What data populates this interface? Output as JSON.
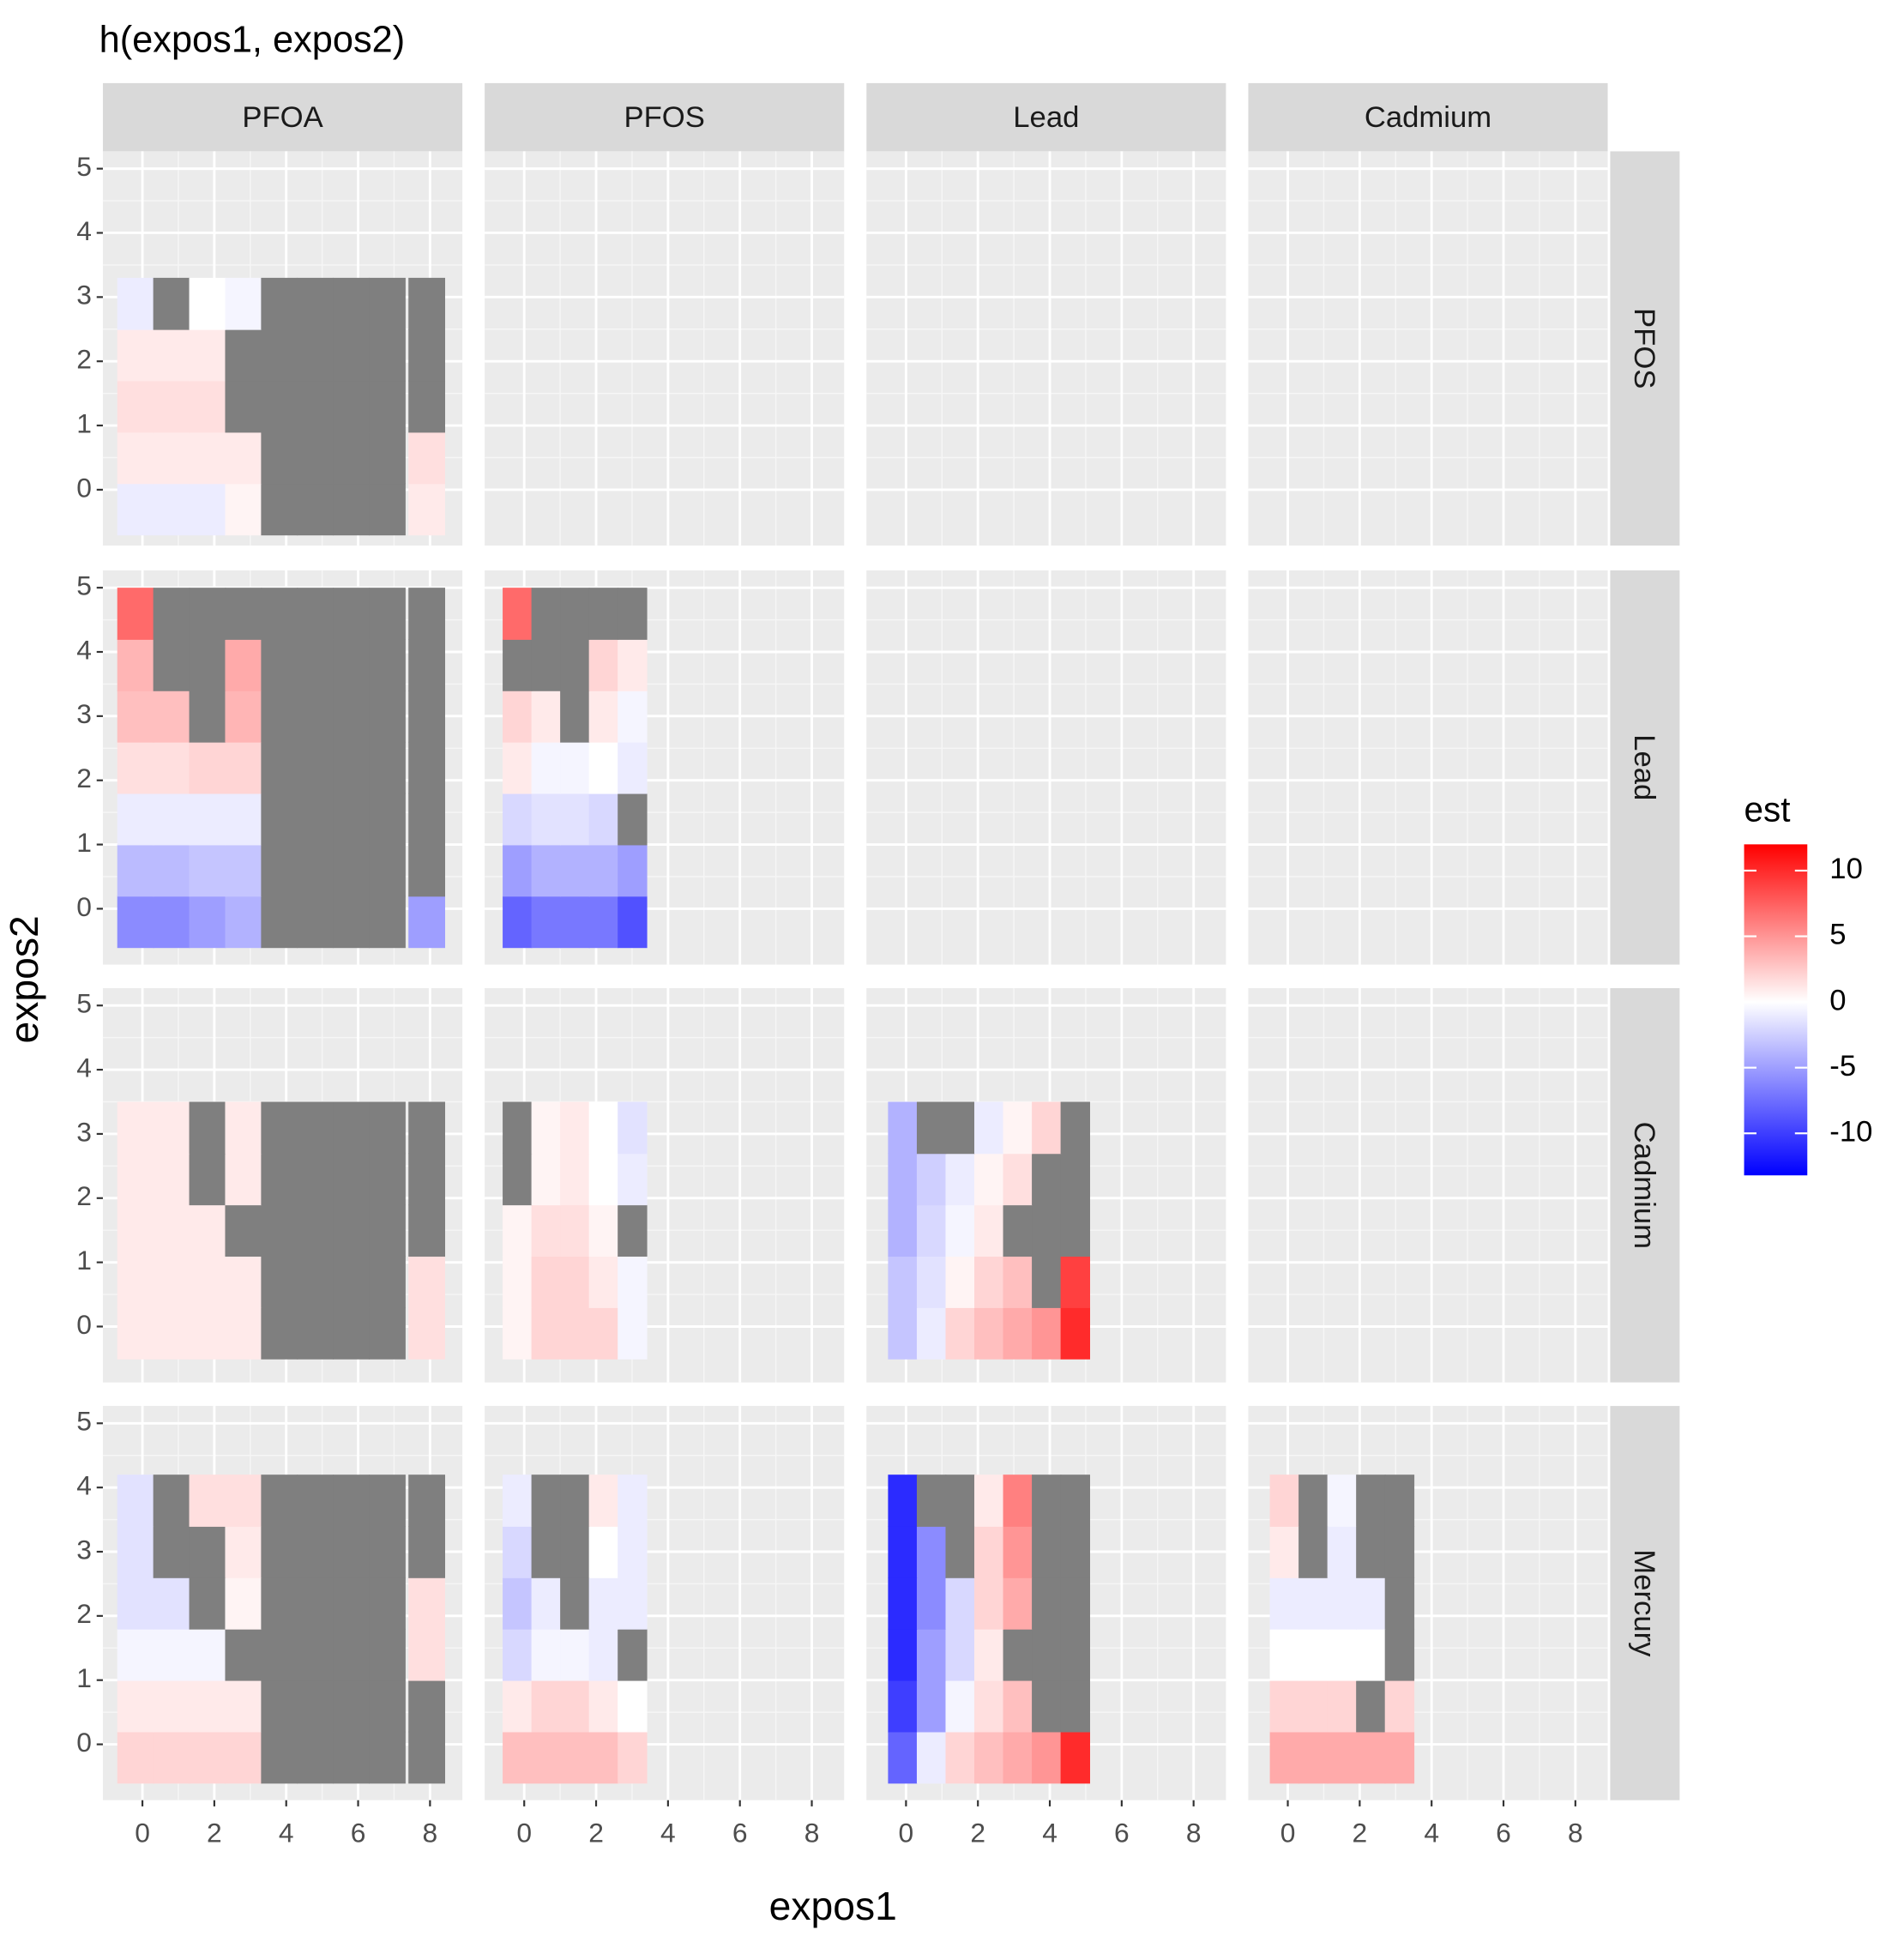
{
  "chart_data": {
    "type": "heatmap",
    "title": "h(expos1, expos2)",
    "x_label": "expos1",
    "y_label": "expos2",
    "col_facets": [
      "PFOA",
      "PFOS",
      "Lead",
      "Cadmium"
    ],
    "row_facets": [
      "PFOS",
      "Lead",
      "Cadmium",
      "Mercury"
    ],
    "xlim": [
      -1.1,
      8.9
    ],
    "xticks": [
      0,
      2,
      4,
      6,
      8
    ],
    "ylim": [
      -0.87,
      5.27
    ],
    "yticks": [
      0,
      1,
      2,
      3,
      4,
      5
    ],
    "grid": true,
    "legend_title": "est",
    "color_low": "#0000ff",
    "color_mid": "#ffffff",
    "color_high": "#ff0000",
    "na_color": "#7f7f7f",
    "color_limits": [
      -13.2,
      12
    ],
    "color_ticks": [
      -10,
      -5,
      0,
      5,
      10
    ],
    "panels": [
      [
        {
          "x": [
            -0.2,
            0.8,
            1.8,
            2.8,
            3.8,
            4.8,
            5.8,
            6.8,
            7.9
          ],
          "y": [
            -0.3,
            0.5,
            1.3,
            2.1,
            2.9
          ],
          "z": [
            [
              -1,
              -1,
              -1,
              0.5,
              null,
              null,
              null,
              null,
              1
            ],
            [
              1,
              1,
              1,
              1,
              null,
              null,
              null,
              null,
              1.5
            ],
            [
              1.5,
              1.5,
              1.5,
              null,
              null,
              null,
              null,
              null,
              null
            ],
            [
              1,
              1,
              1,
              null,
              null,
              null,
              null,
              null,
              null
            ],
            [
              -1,
              null,
              0,
              -0.5,
              null,
              null,
              null,
              null,
              null
            ]
          ]
        },
        null,
        null,
        null
      ],
      [
        {
          "x": [
            -0.2,
            0.8,
            1.8,
            2.8,
            3.8,
            4.8,
            5.8,
            6.8,
            7.9
          ],
          "y": [
            -0.2,
            0.6,
            1.4,
            2.2,
            3.0,
            3.8,
            4.6
          ],
          "z": [
            [
              -6,
              -6,
              -5,
              -4,
              null,
              null,
              null,
              null,
              -5
            ],
            [
              -3.5,
              -3.5,
              -3,
              -3,
              null,
              null,
              null,
              null,
              null
            ],
            [
              -1,
              -1,
              -1,
              -1,
              null,
              null,
              null,
              null,
              null
            ],
            [
              1.5,
              1.5,
              2,
              2,
              null,
              null,
              null,
              null,
              null
            ],
            [
              3,
              3,
              null,
              3.5,
              null,
              null,
              null,
              null,
              null
            ],
            [
              3.5,
              null,
              null,
              4,
              null,
              null,
              null,
              null,
              null
            ],
            [
              7,
              null,
              null,
              null,
              null,
              null,
              null,
              null,
              null
            ]
          ]
        },
        {
          "x": [
            -0.2,
            0.6,
            1.4,
            2.2,
            3.0
          ],
          "y": [
            -0.2,
            0.6,
            1.4,
            2.2,
            3.0,
            3.8,
            4.6
          ],
          "z": [
            [
              -8,
              -7,
              -7,
              -7,
              -9
            ],
            [
              -5,
              -4,
              -4,
              -4,
              -5
            ],
            [
              -2,
              -1.5,
              -1.5,
              -2,
              null
            ],
            [
              1,
              -0.5,
              -0.5,
              0,
              -1
            ],
            [
              2,
              1,
              null,
              1,
              -0.5
            ],
            [
              null,
              null,
              null,
              2,
              1
            ],
            [
              7,
              null,
              null,
              null,
              null
            ]
          ]
        },
        null,
        null
      ],
      [
        {
          "x": [
            -0.2,
            0.8,
            1.8,
            2.8,
            3.8,
            4.8,
            5.8,
            6.8,
            7.9
          ],
          "y": [
            -0.1,
            0.7,
            1.5,
            2.3,
            3.1
          ],
          "z": [
            [
              1,
              1,
              1,
              1,
              null,
              null,
              null,
              null,
              1.5
            ],
            [
              1,
              1,
              1,
              1,
              null,
              null,
              null,
              null,
              1.5
            ],
            [
              1,
              1,
              1,
              null,
              null,
              null,
              null,
              null,
              null
            ],
            [
              1,
              1,
              null,
              1,
              null,
              null,
              null,
              null,
              null
            ],
            [
              1,
              1,
              null,
              1,
              null,
              null,
              null,
              null,
              null
            ]
          ]
        },
        {
          "x": [
            -0.2,
            0.6,
            1.4,
            2.2,
            3.0
          ],
          "y": [
            -0.1,
            0.7,
            1.5,
            2.3,
            3.1
          ],
          "z": [
            [
              0.5,
              2,
              2,
              2,
              -0.5
            ],
            [
              0.5,
              2,
              2,
              1,
              -0.5
            ],
            [
              0.5,
              1.5,
              1.5,
              0.5,
              null
            ],
            [
              null,
              0.5,
              1,
              0,
              -1
            ],
            [
              null,
              0.5,
              1,
              0,
              -1.5
            ]
          ]
        },
        {
          "x": [
            -0.1,
            0.7,
            1.5,
            2.3,
            3.1,
            3.9,
            4.7
          ],
          "y": [
            -0.1,
            0.7,
            1.5,
            2.3,
            3.1
          ],
          "z": [
            [
              -3,
              -1,
              2,
              3,
              4,
              5,
              10
            ],
            [
              -3,
              -1.5,
              0.5,
              2,
              3,
              null,
              9
            ],
            [
              -4,
              -2,
              -0.5,
              1,
              null,
              null,
              null
            ],
            [
              -4,
              -2.5,
              -1,
              0.5,
              1.5,
              null,
              null
            ],
            [
              -4,
              null,
              null,
              -1,
              0.5,
              2,
              null
            ]
          ]
        },
        null
      ],
      [
        {
          "x": [
            -0.2,
            0.8,
            1.8,
            2.8,
            3.8,
            4.8,
            5.8,
            6.8,
            7.9
          ],
          "y": [
            -0.2,
            0.6,
            1.4,
            2.2,
            3.0,
            3.8
          ],
          "z": [
            [
              2,
              2,
              2,
              2,
              null,
              null,
              null,
              null,
              null
            ],
            [
              1,
              1,
              1,
              1,
              null,
              null,
              null,
              null,
              null
            ],
            [
              -0.5,
              -0.5,
              -0.5,
              null,
              null,
              null,
              null,
              null,
              1.5
            ],
            [
              -1.5,
              -1.5,
              null,
              0.5,
              null,
              null,
              null,
              null,
              1.5
            ],
            [
              -1.5,
              null,
              null,
              1,
              null,
              null,
              null,
              null,
              null
            ],
            [
              -1.5,
              null,
              1.5,
              1.5,
              null,
              null,
              null,
              null,
              null
            ]
          ]
        },
        {
          "x": [
            -0.2,
            0.6,
            1.4,
            2.2,
            3.0
          ],
          "y": [
            -0.2,
            0.6,
            1.4,
            2.2,
            3.0,
            3.8
          ],
          "z": [
            [
              3,
              3,
              3,
              3,
              2
            ],
            [
              1,
              2,
              2,
              1,
              0
            ],
            [
              -2,
              -0.5,
              -0.5,
              -1,
              null
            ],
            [
              -3,
              -1,
              null,
              -1,
              -1
            ],
            [
              -2,
              null,
              null,
              0,
              -1
            ],
            [
              -1,
              null,
              null,
              1,
              -1
            ]
          ]
        },
        {
          "x": [
            -0.1,
            0.7,
            1.5,
            2.3,
            3.1,
            3.9,
            4.7
          ],
          "y": [
            -0.2,
            0.6,
            1.4,
            2.2,
            3.0,
            3.8
          ],
          "z": [
            [
              -8,
              -1,
              2,
              3,
              4,
              5,
              10
            ],
            [
              -10,
              -5,
              -0.5,
              1.5,
              3,
              null,
              null
            ],
            [
              -11,
              -5,
              -2,
              1,
              null,
              null,
              null
            ],
            [
              -11,
              -6,
              -2,
              2,
              4,
              null,
              null
            ],
            [
              -11,
              -6,
              null,
              2,
              5,
              null,
              null
            ],
            [
              -11,
              null,
              null,
              1,
              6,
              null,
              null
            ]
          ]
        },
        {
          "x": [
            -0.1,
            0.7,
            1.5,
            2.3,
            3.1
          ],
          "y": [
            -0.2,
            0.6,
            1.4,
            2.2,
            3.0,
            3.8
          ],
          "z": [
            [
              4,
              4,
              4,
              4,
              4
            ],
            [
              2,
              2,
              2,
              null,
              2
            ],
            [
              0,
              0,
              0,
              0,
              null
            ],
            [
              -1,
              -1,
              -1,
              -1,
              null
            ],
            [
              1,
              null,
              -1,
              null,
              null
            ],
            [
              2,
              null,
              -0.5,
              null,
              null
            ]
          ]
        }
      ]
    ]
  }
}
